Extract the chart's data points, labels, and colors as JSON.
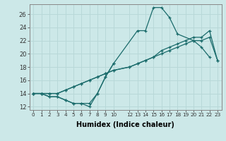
{
  "xlabel": "Humidex (Indice chaleur)",
  "background_color": "#cce8e8",
  "grid_color": "#b8d8d8",
  "line_color": "#1a6b6b",
  "xlim": [
    -0.5,
    23.5
  ],
  "ylim": [
    11.5,
    27.5
  ],
  "xticks": [
    0,
    1,
    2,
    3,
    4,
    5,
    6,
    7,
    8,
    9,
    10,
    12,
    13,
    14,
    15,
    16,
    17,
    18,
    19,
    20,
    21,
    22,
    23
  ],
  "yticks": [
    12,
    14,
    16,
    18,
    20,
    22,
    24,
    26
  ],
  "series": [
    {
      "x": [
        0,
        1,
        2,
        3,
        4,
        5,
        6,
        7,
        8,
        9,
        10,
        13,
        14,
        15,
        16,
        17,
        18,
        20,
        21,
        22
      ],
      "y": [
        14.0,
        14.0,
        13.5,
        13.5,
        13.0,
        12.5,
        12.5,
        12.5,
        14.0,
        16.5,
        18.5,
        23.5,
        23.5,
        27.0,
        27.0,
        25.5,
        23.0,
        22.0,
        21.0,
        19.5
      ]
    },
    {
      "x": [
        0,
        1,
        2,
        3,
        4,
        5,
        6,
        7,
        8,
        9,
        10
      ],
      "y": [
        14.0,
        14.0,
        13.5,
        13.5,
        13.0,
        12.5,
        12.5,
        12.0,
        14.0,
        16.5,
        18.5
      ]
    },
    {
      "x": [
        0,
        1,
        2,
        3,
        4,
        5,
        6,
        7,
        8,
        9,
        10,
        12,
        13,
        14,
        15,
        16,
        17,
        18,
        19,
        20,
        21,
        22,
        23
      ],
      "y": [
        14.0,
        14.0,
        14.0,
        14.0,
        14.5,
        15.0,
        15.5,
        16.0,
        16.5,
        17.0,
        17.5,
        18.0,
        18.5,
        19.0,
        19.5,
        20.0,
        20.5,
        21.0,
        21.5,
        22.0,
        22.0,
        22.5,
        19.0
      ]
    },
    {
      "x": [
        0,
        1,
        2,
        3,
        4,
        5,
        6,
        7,
        8,
        9,
        10,
        12,
        13,
        14,
        15,
        16,
        17,
        18,
        19,
        20,
        21,
        22,
        23
      ],
      "y": [
        14.0,
        14.0,
        14.0,
        14.0,
        14.5,
        15.0,
        15.5,
        16.0,
        16.5,
        17.0,
        17.5,
        18.0,
        18.5,
        19.0,
        19.5,
        20.5,
        21.0,
        21.5,
        22.0,
        22.5,
        22.5,
        23.5,
        19.0
      ]
    }
  ]
}
